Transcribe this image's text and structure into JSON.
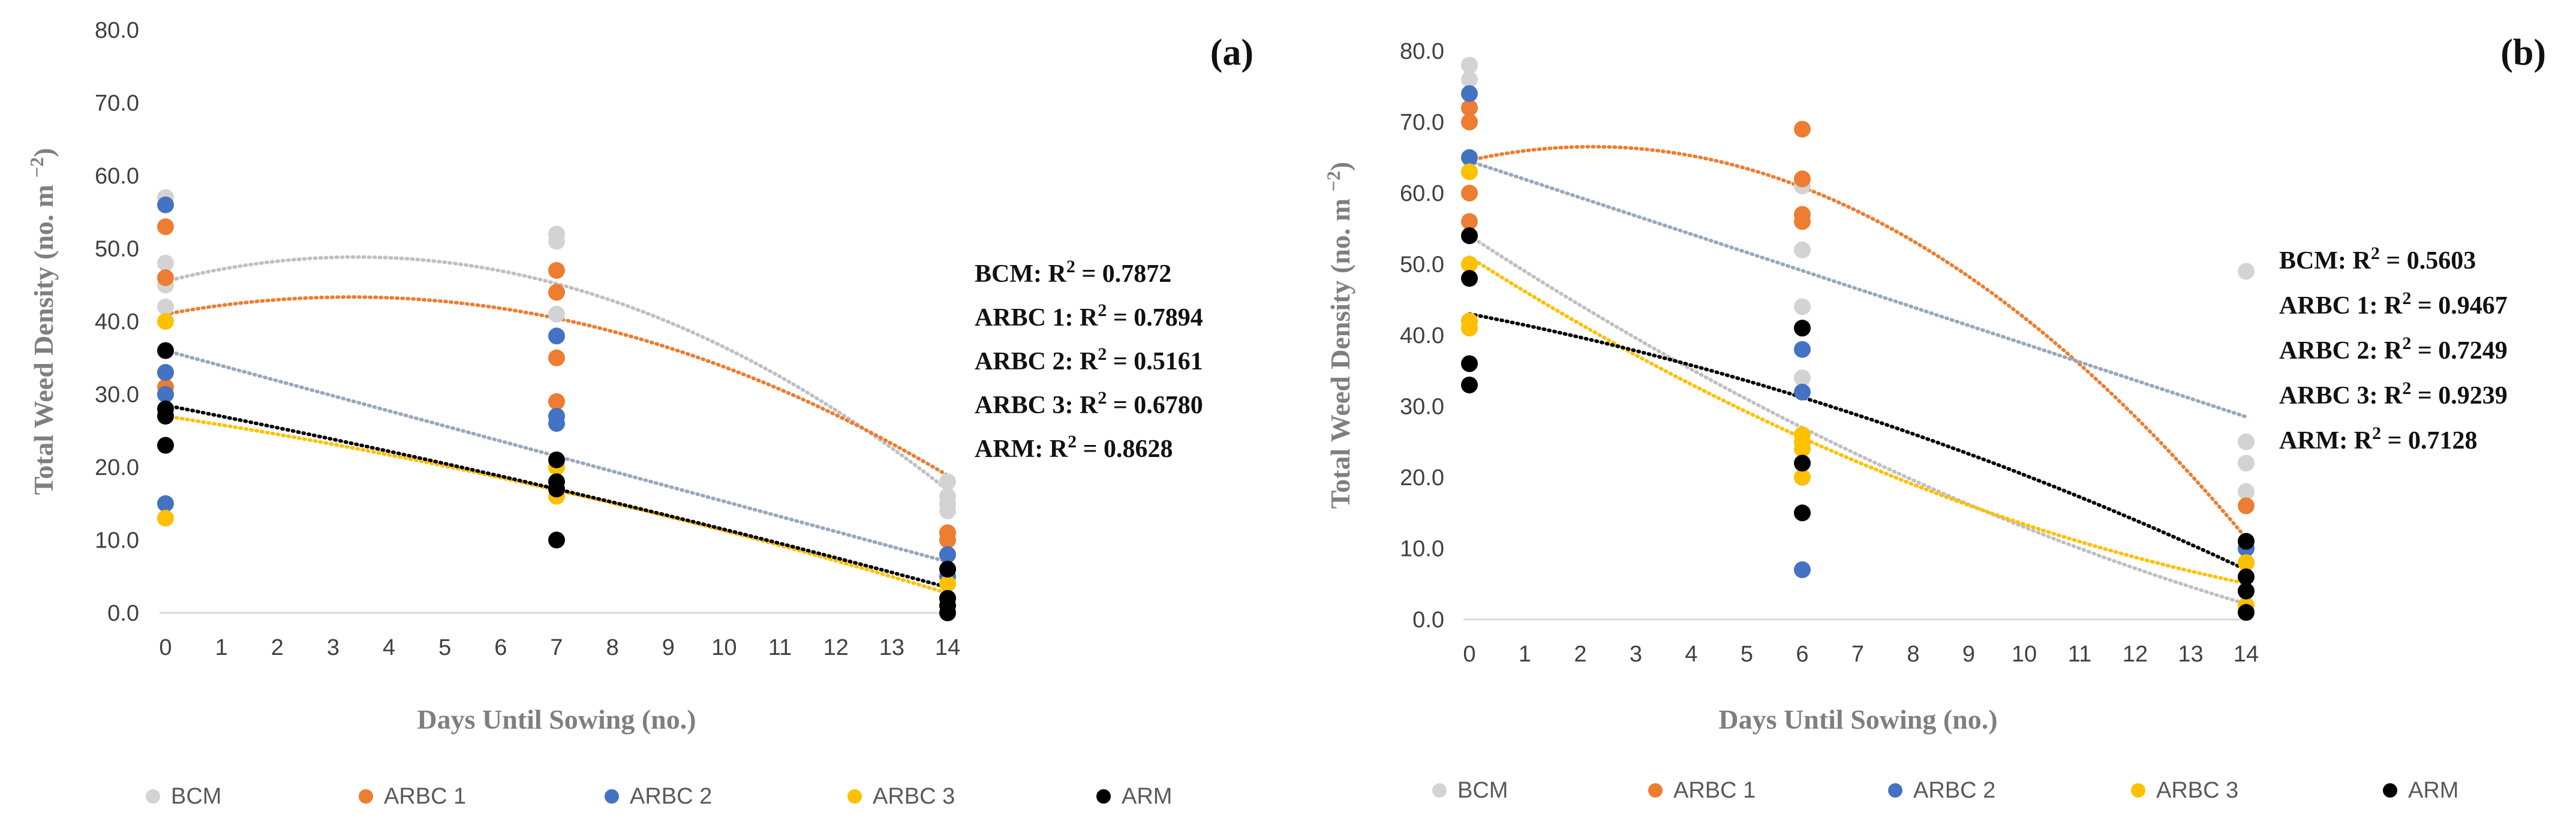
{
  "colors": {
    "BCM": "#d3d3d3",
    "ARBC 1": "#ed7d31",
    "ARBC 2": "#4472c4",
    "ARBC 3": "#ffc000",
    "ARM": "#000000",
    "BCM_trend": "#c0c0c0",
    "ARBC2_trend": "#9aa7bd"
  },
  "chart_data": [
    {
      "type": "scatter",
      "panel_label": "(a)",
      "xlabel": "Days Until Sowing (no.)",
      "ylabel": "Total Weed Density (no. m ",
      "ylabel_sup": "−2",
      "ylabel_close": ")",
      "xlim": [
        0,
        14
      ],
      "ylim": [
        0,
        80
      ],
      "x_ticks": [
        "0",
        "1",
        "2",
        "3",
        "4",
        "5",
        "6",
        "7",
        "8",
        "9",
        "10",
        "11",
        "12",
        "13",
        "14"
      ],
      "y_ticks": [
        "0.0",
        "10.0",
        "20.0",
        "30.0",
        "40.0",
        "50.0",
        "60.0",
        "70.0",
        "80.0"
      ],
      "series": [
        {
          "name": "BCM",
          "points": [
            [
              0,
              57
            ],
            [
              0,
              48
            ],
            [
              0,
              45
            ],
            [
              0,
              42
            ],
            [
              7,
              52
            ],
            [
              7,
              51
            ],
            [
              7,
              41
            ],
            [
              7,
              38
            ],
            [
              14,
              18
            ],
            [
              14,
              16
            ],
            [
              14,
              15
            ],
            [
              14,
              14
            ],
            [
              14,
              11
            ],
            [
              14,
              8
            ]
          ],
          "trend": {
            "kind": "quadratic",
            "a": -0.2857,
            "b": 1.954,
            "c": 45.5
          }
        },
        {
          "name": "ARBC 1",
          "points": [
            [
              0,
              53
            ],
            [
              0,
              46
            ],
            [
              0,
              33
            ],
            [
              0,
              31
            ],
            [
              0,
              30
            ],
            [
              7,
              47
            ],
            [
              7,
              44
            ],
            [
              7,
              35
            ],
            [
              7,
              29
            ],
            [
              14,
              11
            ],
            [
              14,
              10
            ],
            [
              14,
              8
            ],
            [
              14,
              6
            ]
          ],
          "trend": {
            "kind": "quadratic",
            "a": -0.2143,
            "b": 1.419,
            "c": 41.0
          }
        },
        {
          "name": "ARBC 2",
          "points": [
            [
              0,
              56
            ],
            [
              0,
              33
            ],
            [
              0,
              30
            ],
            [
              0,
              15
            ],
            [
              7,
              38
            ],
            [
              7,
              27
            ],
            [
              7,
              26
            ],
            [
              14,
              8
            ],
            [
              14,
              5
            ]
          ],
          "trend": {
            "kind": "linear",
            "a": 0,
            "b": -2.07,
            "c": 36.0
          }
        },
        {
          "name": "ARBC 3",
          "points": [
            [
              0,
              40
            ],
            [
              0,
              27
            ],
            [
              0,
              13
            ],
            [
              7,
              20
            ],
            [
              7,
              16
            ],
            [
              14,
              4
            ],
            [
              14,
              2
            ],
            [
              14,
              1
            ]
          ],
          "trend": {
            "kind": "quadratic",
            "a": -0.0408,
            "b": -1.164,
            "c": 27.0
          }
        },
        {
          "name": "ARM",
          "points": [
            [
              0,
              36
            ],
            [
              0,
              28
            ],
            [
              0,
              27
            ],
            [
              0,
              23
            ],
            [
              7,
              21
            ],
            [
              7,
              18
            ],
            [
              7,
              17
            ],
            [
              7,
              10
            ],
            [
              14,
              6
            ],
            [
              14,
              2
            ],
            [
              14,
              1
            ],
            [
              14,
              0
            ]
          ],
          "trend": {
            "kind": "quadratic",
            "a": -0.0204,
            "b": -1.5,
            "c": 28.5
          }
        }
      ],
      "r2_labels": [
        "BCM: R",
        "ARBC 1: R",
        "ARBC 2: R",
        "ARBC 3: R",
        "ARM: R"
      ],
      "r2_values": [
        " = 0.7872",
        " = 0.7894",
        " =  0.5161",
        " = 0.6780",
        " = 0.8628"
      ]
    },
    {
      "type": "scatter",
      "panel_label": "(b)",
      "xlabel": "Days Until Sowing (no.)",
      "ylabel": "Total Weed Density (no. m ",
      "ylabel_sup": "−2",
      "ylabel_close": ")",
      "xlim": [
        0,
        14
      ],
      "ylim": [
        0,
        80
      ],
      "x_ticks": [
        "0",
        "1",
        "2",
        "3",
        "4",
        "5",
        "6",
        "7",
        "8",
        "9",
        "10",
        "11",
        "12",
        "13",
        "14"
      ],
      "y_ticks": [
        "0.0",
        "10.0",
        "20.0",
        "30.0",
        "40.0",
        "50.0",
        "60.0",
        "70.0",
        "80.0"
      ],
      "series": [
        {
          "name": "BCM",
          "points": [
            [
              0,
              78
            ],
            [
              0,
              76
            ],
            [
              6,
              61
            ],
            [
              6,
              52
            ],
            [
              6,
              44
            ],
            [
              6,
              34
            ],
            [
              14,
              49
            ],
            [
              14,
              25
            ],
            [
              14,
              22
            ],
            [
              14,
              18
            ]
          ],
          "trend": {
            "kind": "quadratic",
            "a": 0.1,
            "b": -5.1,
            "c": 54.0
          }
        },
        {
          "name": "ARBC 1",
          "points": [
            [
              0,
              72
            ],
            [
              0,
              70
            ],
            [
              0,
              60
            ],
            [
              0,
              56
            ],
            [
              6,
              69
            ],
            [
              6,
              62
            ],
            [
              6,
              57
            ],
            [
              6,
              56
            ],
            [
              14,
              16
            ],
            [
              14,
              10
            ]
          ],
          "trend": {
            "kind": "quadratic",
            "a": -0.3962,
            "b": 1.75,
            "c": 64.6
          }
        },
        {
          "name": "ARBC 2",
          "points": [
            [
              0,
              74
            ],
            [
              0,
              65
            ],
            [
              0,
              42
            ],
            [
              6,
              38
            ],
            [
              6,
              32
            ],
            [
              6,
              7
            ],
            [
              14,
              10
            ],
            [
              14,
              8
            ]
          ],
          "trend": {
            "kind": "linear",
            "a": 0,
            "b": -2.57,
            "c": 64.5
          }
        },
        {
          "name": "ARBC 3",
          "points": [
            [
              0,
              63
            ],
            [
              0,
              50
            ],
            [
              0,
              42
            ],
            [
              0,
              41
            ],
            [
              6,
              26
            ],
            [
              6,
              25
            ],
            [
              6,
              24
            ],
            [
              6,
              20
            ],
            [
              14,
              8
            ],
            [
              14,
              2
            ],
            [
              14,
              1
            ]
          ],
          "trend": {
            "kind": "quadratic",
            "a": 0.12,
            "b": -4.96,
            "c": 51.0
          }
        },
        {
          "name": "ARM",
          "points": [
            [
              0,
              54
            ],
            [
              0,
              48
            ],
            [
              0,
              36
            ],
            [
              0,
              33
            ],
            [
              6,
              41
            ],
            [
              6,
              22
            ],
            [
              6,
              15
            ],
            [
              14,
              11
            ],
            [
              14,
              6
            ],
            [
              14,
              4
            ],
            [
              14,
              1
            ]
          ],
          "trend": {
            "kind": "quadratic",
            "a": -0.0765,
            "b": -1.5,
            "c": 43.0
          }
        }
      ],
      "r2_labels": [
        "BCM: R",
        "ARBC 1: R",
        "ARBC 2: R",
        "ARBC 3: R",
        "ARM: R"
      ],
      "r2_values": [
        " = 0.5603",
        " = 0.9467",
        " = 0.7249",
        " = 0.9239",
        " = 0.7128"
      ]
    }
  ],
  "legend": {
    "labels": [
      "BCM",
      "ARBC 1",
      "ARBC 2",
      "ARBC 3",
      "ARM"
    ]
  }
}
